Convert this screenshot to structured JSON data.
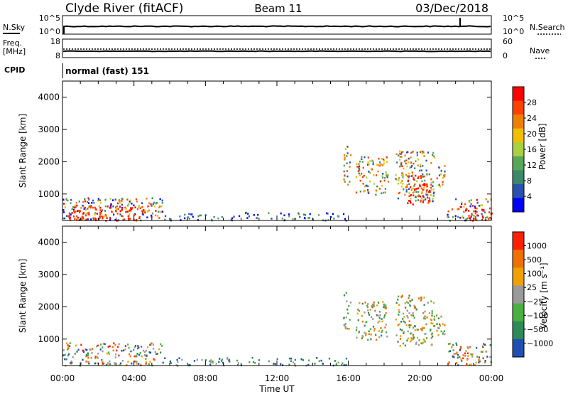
{
  "header": {
    "station": "Clyde River (fitACF)",
    "beam": "Beam 11",
    "date": "03/Dec/2018"
  },
  "summary_panels": {
    "nsky_label": "N.Sky",
    "nsearch_label": "N.Search",
    "nsky_ticks": [
      "10^5",
      "10^0"
    ],
    "nsearch_ticks": [
      "10^5",
      "10^0"
    ],
    "freq_label_1": "Freq.",
    "freq_label_2": "[MHz]",
    "freq_ticks": [
      "18",
      "8"
    ],
    "nave_label": "Nave",
    "nave_ticks": [
      "60",
      "0"
    ],
    "cpid_label": "CPID",
    "cpid_value": "normal (fast) 151"
  },
  "colors": {
    "power": [
      "#0000ff",
      "#2a50b0",
      "#3a8a6a",
      "#58a858",
      "#a8d040",
      "#f0c000",
      "#f08000",
      "#ff4000",
      "#ff0000"
    ],
    "velocity": [
      "#0030ff",
      "#205abe",
      "#2e8a56",
      "#4ab040",
      "#b8b8b8",
      "#f0b000",
      "#f08000",
      "#f06000",
      "#ff0000"
    ],
    "vel_fill": [
      "#1f4fb0",
      "#2e8a56",
      "#4ab040",
      "#9a9a9a",
      "#f0a000",
      "#f07000",
      "#ff2000"
    ]
  },
  "chart_data": [
    {
      "type": "heatmap",
      "name": "power",
      "ylabel": "Slant Range [km]",
      "xlabel": "",
      "y_ticks": [
        "4000",
        "3000",
        "2000",
        "1000"
      ],
      "ylim": [
        180,
        4500
      ],
      "xlim": [
        0,
        24
      ],
      "x_ticks": [
        "00:00",
        "04:00",
        "08:00",
        "12:00",
        "16:00",
        "20:00",
        "00:00"
      ],
      "colorbar": {
        "label": "Power [dB]",
        "ticks": [
          "28",
          "24",
          "20",
          "16",
          "12",
          "8",
          "4"
        ]
      },
      "regions": [
        {
          "t0": 0.0,
          "t1": 5.6,
          "r0": 200,
          "r1": 900,
          "level": "mixed"
        },
        {
          "t0": 0.3,
          "t1": 4.6,
          "r0": 200,
          "r1": 650,
          "level": "high"
        },
        {
          "t0": 5.6,
          "t1": 16.0,
          "r0": 200,
          "r1": 450,
          "level": "low"
        },
        {
          "t0": 15.7,
          "t1": 16.1,
          "r0": 1300,
          "r1": 2500,
          "level": "mid"
        },
        {
          "t0": 16.4,
          "t1": 18.2,
          "r0": 1000,
          "r1": 2200,
          "level": "mid"
        },
        {
          "t0": 18.6,
          "t1": 20.8,
          "r0": 800,
          "r1": 2400,
          "level": "mid"
        },
        {
          "t0": 19.2,
          "t1": 20.6,
          "r0": 700,
          "r1": 1600,
          "level": "high"
        },
        {
          "t0": 20.9,
          "t1": 21.4,
          "r0": 1100,
          "r1": 1900,
          "level": "mid"
        },
        {
          "t0": 21.5,
          "t1": 24.0,
          "r0": 200,
          "r1": 900,
          "level": "mixed"
        },
        {
          "t0": 22.4,
          "t1": 24.0,
          "r0": 200,
          "r1": 600,
          "level": "high"
        }
      ]
    },
    {
      "type": "heatmap",
      "name": "velocity",
      "ylabel": "Slant Range [km]",
      "xlabel": "Time UT",
      "y_ticks": [
        "4000",
        "3000",
        "2000",
        "1000"
      ],
      "ylim": [
        180,
        4500
      ],
      "xlim": [
        0,
        24
      ],
      "x_ticks": [
        "00:00",
        "04:00",
        "08:00",
        "12:00",
        "16:00",
        "20:00",
        "00:00"
      ],
      "colorbar": {
        "label": "Velocity [m s⁻¹]",
        "ticks": [
          "1000",
          "500",
          "100",
          "25",
          "−25",
          "−100",
          "−500",
          "−1000"
        ]
      },
      "regions": [
        {
          "t0": 0.0,
          "t1": 5.6,
          "r0": 200,
          "r1": 900,
          "level": "mixed"
        },
        {
          "t0": 5.6,
          "t1": 16.0,
          "r0": 200,
          "r1": 450,
          "level": "low"
        },
        {
          "t0": 15.7,
          "t1": 16.1,
          "r0": 1300,
          "r1": 2500,
          "level": "mid"
        },
        {
          "t0": 16.4,
          "t1": 18.2,
          "r0": 1000,
          "r1": 2200,
          "level": "mid"
        },
        {
          "t0": 18.6,
          "t1": 20.8,
          "r0": 800,
          "r1": 2400,
          "level": "mid"
        },
        {
          "t0": 20.9,
          "t1": 21.4,
          "r0": 1100,
          "r1": 1900,
          "level": "mid"
        },
        {
          "t0": 21.5,
          "t1": 24.0,
          "r0": 200,
          "r1": 900,
          "level": "mixed"
        }
      ]
    }
  ]
}
